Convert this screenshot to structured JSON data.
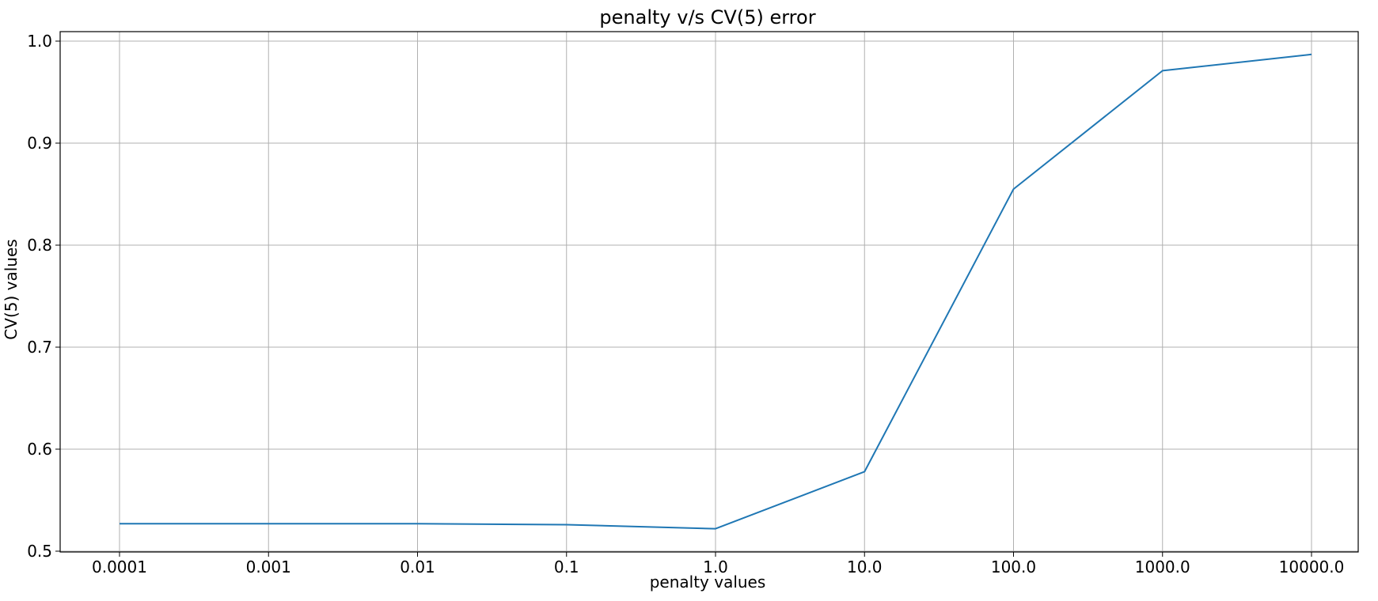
{
  "chart_data": {
    "type": "line",
    "title": "penalty v/s CV(5) error",
    "xlabel": "penalty values",
    "ylabel": "CV(5) values",
    "x_scale": "categorical",
    "categories": [
      "0.0001",
      "0.001",
      "0.01",
      "0.1",
      "1.0",
      "10.0",
      "100.0",
      "1000.0",
      "10000.0"
    ],
    "series": [
      {
        "values": [
          0.527,
          0.527,
          0.527,
          0.526,
          0.522,
          0.578,
          0.855,
          0.971,
          0.987
        ],
        "color": "#1f77b4"
      }
    ],
    "ylim": [
      0.5,
      1.0
    ],
    "yticks": [
      "0.5",
      "0.6",
      "0.7",
      "0.8",
      "0.9",
      "1.0"
    ],
    "ytick_values": [
      0.5,
      0.6,
      0.7,
      0.8,
      0.9,
      1.0
    ],
    "grid": true,
    "legend": "none"
  }
}
